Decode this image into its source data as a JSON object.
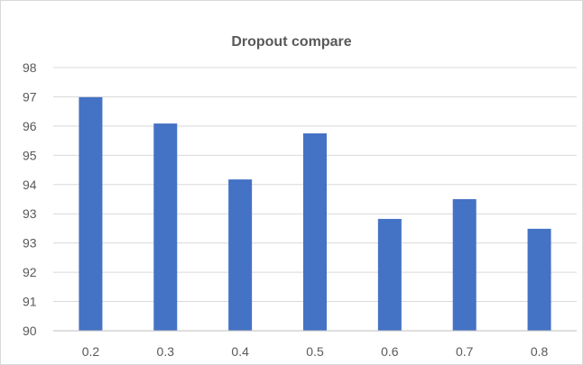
{
  "chart_data": {
    "type": "bar",
    "title": "Dropout compare",
    "xlabel": "",
    "ylabel": "",
    "categories": [
      "0.2",
      "0.3",
      "0.4",
      "0.5",
      "0.6",
      "0.7",
      "0.8"
    ],
    "values": [
      97.1,
      96.3,
      94.6,
      96.0,
      93.4,
      94.0,
      93.1
    ],
    "y_ticks": [
      "90",
      "91",
      "92",
      "93",
      "93",
      "94",
      "95",
      "96",
      "97",
      "98"
    ],
    "ylim": [
      90,
      98
    ],
    "grid": true,
    "legend": "none",
    "bar_color": "#4472c4"
  }
}
